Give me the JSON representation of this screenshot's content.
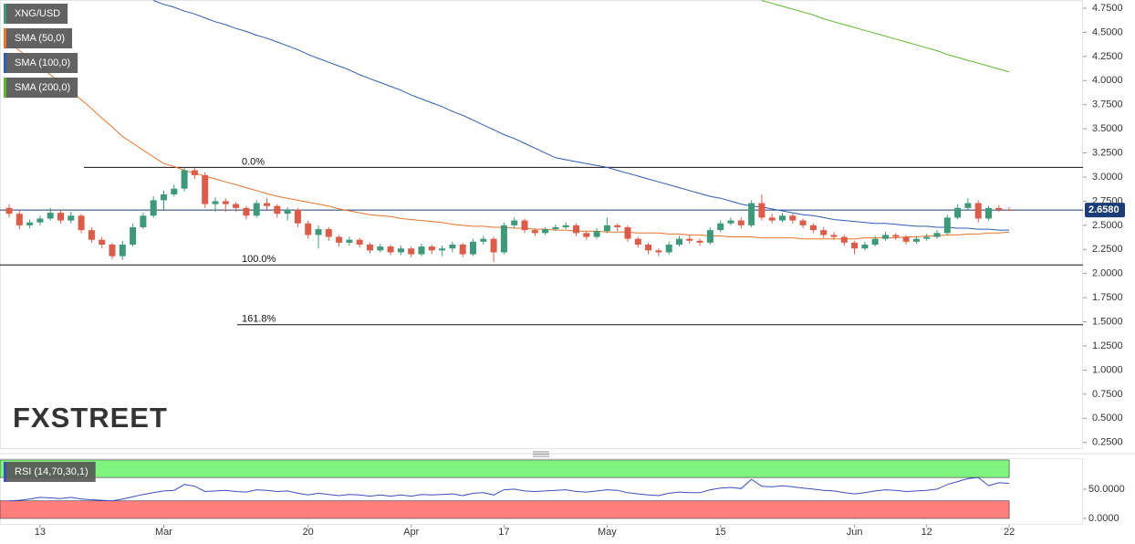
{
  "chart_data": {
    "type": "candlestick",
    "title": "XNG/USD",
    "title_color": "#3d9a78",
    "up_color": "#3d9a78",
    "down_color": "#e05a48",
    "watermark": "FXSTREET",
    "categories": [
      null,
      null,
      null,
      "13",
      null,
      null,
      null,
      null,
      null,
      null,
      null,
      null,
      null,
      null,
      null,
      "Mar",
      null,
      null,
      null,
      null,
      null,
      null,
      null,
      null,
      null,
      null,
      null,
      null,
      null,
      "20",
      null,
      null,
      null,
      null,
      null,
      null,
      null,
      null,
      null,
      "Apr",
      null,
      null,
      null,
      null,
      null,
      null,
      null,
      null,
      "17",
      null,
      null,
      null,
      null,
      null,
      null,
      null,
      null,
      null,
      "May",
      null,
      null,
      null,
      null,
      null,
      null,
      null,
      null,
      null,
      null,
      "15",
      null,
      null,
      null,
      null,
      null,
      null,
      null,
      null,
      null,
      null,
      null,
      null,
      "Jun",
      null,
      null,
      null,
      null,
      null,
      null,
      "12",
      null,
      null,
      null,
      null,
      null,
      null,
      null,
      "22"
    ],
    "ohlc": [
      [
        2.68,
        2.72,
        2.58,
        2.62
      ],
      [
        2.62,
        2.66,
        2.46,
        2.5
      ],
      [
        2.5,
        2.56,
        2.47,
        2.53
      ],
      [
        2.53,
        2.6,
        2.5,
        2.57
      ],
      [
        2.57,
        2.68,
        2.55,
        2.63
      ],
      [
        2.63,
        2.66,
        2.52,
        2.55
      ],
      [
        2.55,
        2.64,
        2.52,
        2.6
      ],
      [
        2.6,
        2.62,
        2.42,
        2.45
      ],
      [
        2.45,
        2.48,
        2.32,
        2.35
      ],
      [
        2.35,
        2.38,
        2.26,
        2.3
      ],
      [
        2.3,
        2.32,
        2.15,
        2.18
      ],
      [
        2.18,
        2.34,
        2.14,
        2.3
      ],
      [
        2.3,
        2.52,
        2.28,
        2.48
      ],
      [
        2.48,
        2.63,
        2.46,
        2.6
      ],
      [
        2.6,
        2.8,
        2.58,
        2.76
      ],
      [
        2.76,
        2.86,
        2.66,
        2.82
      ],
      [
        2.82,
        2.92,
        2.8,
        2.88
      ],
      [
        2.88,
        3.1,
        2.85,
        3.07
      ],
      [
        3.07,
        3.1,
        2.98,
        3.02
      ],
      [
        3.02,
        3.05,
        2.68,
        2.72
      ],
      [
        2.72,
        2.79,
        2.64,
        2.75
      ],
      [
        2.75,
        2.78,
        2.64,
        2.72
      ],
      [
        2.72,
        2.74,
        2.64,
        2.68
      ],
      [
        2.68,
        2.7,
        2.56,
        2.6
      ],
      [
        2.6,
        2.76,
        2.58,
        2.73
      ],
      [
        2.73,
        2.78,
        2.66,
        2.7
      ],
      [
        2.7,
        2.72,
        2.58,
        2.62
      ],
      [
        2.62,
        2.69,
        2.55,
        2.66
      ],
      [
        2.66,
        2.68,
        2.48,
        2.52
      ],
      [
        2.52,
        2.55,
        2.36,
        2.4
      ],
      [
        2.4,
        2.5,
        2.26,
        2.46
      ],
      [
        2.46,
        2.48,
        2.34,
        2.38
      ],
      [
        2.38,
        2.4,
        2.28,
        2.32
      ],
      [
        2.32,
        2.38,
        2.29,
        2.35
      ],
      [
        2.35,
        2.37,
        2.27,
        2.3
      ],
      [
        2.3,
        2.32,
        2.21,
        2.24
      ],
      [
        2.24,
        2.31,
        2.22,
        2.28
      ],
      [
        2.28,
        2.3,
        2.19,
        2.22
      ],
      [
        2.22,
        2.29,
        2.19,
        2.26
      ],
      [
        2.26,
        2.28,
        2.17,
        2.2
      ],
      [
        2.2,
        2.31,
        2.18,
        2.28
      ],
      [
        2.28,
        2.3,
        2.2,
        2.24
      ],
      [
        2.24,
        2.29,
        2.18,
        2.26
      ],
      [
        2.26,
        2.33,
        2.22,
        2.3
      ],
      [
        2.3,
        2.32,
        2.17,
        2.2
      ],
      [
        2.2,
        2.36,
        2.18,
        2.33
      ],
      [
        2.33,
        2.39,
        2.3,
        2.36
      ],
      [
        2.36,
        2.38,
        2.12,
        2.22
      ],
      [
        2.22,
        2.53,
        2.2,
        2.5
      ],
      [
        2.5,
        2.58,
        2.47,
        2.55
      ],
      [
        2.55,
        2.57,
        2.42,
        2.45
      ],
      [
        2.45,
        2.47,
        2.39,
        2.42
      ],
      [
        2.42,
        2.48,
        2.4,
        2.46
      ],
      [
        2.46,
        2.51,
        2.44,
        2.48
      ],
      [
        2.48,
        2.53,
        2.46,
        2.5
      ],
      [
        2.5,
        2.52,
        2.39,
        2.42
      ],
      [
        2.42,
        2.44,
        2.35,
        2.38
      ],
      [
        2.38,
        2.47,
        2.36,
        2.44
      ],
      [
        2.44,
        2.58,
        2.42,
        2.5
      ],
      [
        2.5,
        2.52,
        2.44,
        2.48
      ],
      [
        2.48,
        2.5,
        2.33,
        2.36
      ],
      [
        2.36,
        2.38,
        2.27,
        2.3
      ],
      [
        2.3,
        2.32,
        2.2,
        2.24
      ],
      [
        2.24,
        2.26,
        2.18,
        2.22
      ],
      [
        2.22,
        2.33,
        2.2,
        2.3
      ],
      [
        2.3,
        2.39,
        2.28,
        2.36
      ],
      [
        2.36,
        2.4,
        2.31,
        2.34
      ],
      [
        2.34,
        2.36,
        2.29,
        2.32
      ],
      [
        2.32,
        2.48,
        2.3,
        2.45
      ],
      [
        2.45,
        2.55,
        2.43,
        2.52
      ],
      [
        2.52,
        2.58,
        2.5,
        2.55
      ],
      [
        2.55,
        2.58,
        2.47,
        2.5
      ],
      [
        2.5,
        2.76,
        2.48,
        2.73
      ],
      [
        2.73,
        2.82,
        2.55,
        2.58
      ],
      [
        2.58,
        2.62,
        2.52,
        2.55
      ],
      [
        2.55,
        2.63,
        2.53,
        2.6
      ],
      [
        2.6,
        2.62,
        2.52,
        2.55
      ],
      [
        2.55,
        2.57,
        2.47,
        2.5
      ],
      [
        2.5,
        2.52,
        2.42,
        2.45
      ],
      [
        2.45,
        2.48,
        2.37,
        2.4
      ],
      [
        2.4,
        2.43,
        2.35,
        2.38
      ],
      [
        2.38,
        2.4,
        2.29,
        2.32
      ],
      [
        2.32,
        2.34,
        2.2,
        2.26
      ],
      [
        2.26,
        2.33,
        2.24,
        2.3
      ],
      [
        2.3,
        2.39,
        2.28,
        2.36
      ],
      [
        2.36,
        2.43,
        2.34,
        2.4
      ],
      [
        2.4,
        2.42,
        2.35,
        2.38
      ],
      [
        2.38,
        2.4,
        2.3,
        2.33
      ],
      [
        2.33,
        2.39,
        2.31,
        2.36
      ],
      [
        2.36,
        2.41,
        2.34,
        2.38
      ],
      [
        2.38,
        2.45,
        2.36,
        2.42
      ],
      [
        2.42,
        2.61,
        2.4,
        2.58
      ],
      [
        2.58,
        2.72,
        2.56,
        2.68
      ],
      [
        2.68,
        2.78,
        2.66,
        2.73
      ],
      [
        2.73,
        2.76,
        2.53,
        2.57
      ],
      [
        2.57,
        2.7,
        2.55,
        2.68
      ],
      [
        2.68,
        2.71,
        2.64,
        2.66
      ],
      [
        2.66,
        2.69,
        2.65,
        2.658
      ]
    ],
    "series": [
      {
        "name": "SMA (50,0)",
        "color": "#e8742a",
        "values": [
          4.4,
          4.31,
          4.23,
          4.14,
          4.06,
          3.97,
          3.89,
          3.8,
          3.71,
          3.61,
          3.52,
          3.42,
          3.35,
          3.28,
          3.21,
          3.14,
          3.11,
          3.07,
          3.04,
          3.01,
          2.98,
          2.95,
          2.92,
          2.89,
          2.86,
          2.83,
          2.8,
          2.78,
          2.76,
          2.74,
          2.72,
          2.7,
          2.67,
          2.65,
          2.63,
          2.61,
          2.6,
          2.59,
          2.57,
          2.56,
          2.55,
          2.54,
          2.53,
          2.51,
          2.5,
          2.49,
          2.49,
          2.48,
          2.48,
          2.47,
          2.47,
          2.46,
          2.46,
          2.45,
          2.45,
          2.44,
          2.44,
          2.44,
          2.43,
          2.43,
          2.43,
          2.42,
          2.42,
          2.42,
          2.41,
          2.41,
          2.4,
          2.4,
          2.39,
          2.39,
          2.38,
          2.38,
          2.38,
          2.37,
          2.37,
          2.37,
          2.37,
          2.36,
          2.36,
          2.36,
          2.36,
          2.36,
          2.36,
          2.37,
          2.37,
          2.37,
          2.37,
          2.38,
          2.38,
          2.39,
          2.39,
          2.4,
          2.4,
          2.41,
          2.41,
          2.42,
          2.42,
          2.43
        ]
      },
      {
        "name": "SMA (100,0)",
        "color": "#2d5db5",
        "values": [
          null,
          null,
          null,
          null,
          null,
          null,
          null,
          null,
          null,
          null,
          null,
          null,
          null,
          null,
          4.83,
          4.79,
          4.76,
          4.72,
          4.69,
          4.65,
          4.61,
          4.58,
          4.54,
          4.51,
          4.47,
          4.44,
          4.4,
          4.36,
          4.32,
          4.27,
          4.23,
          4.19,
          4.15,
          4.11,
          4.06,
          4.02,
          3.98,
          3.94,
          3.9,
          3.85,
          3.81,
          3.77,
          3.73,
          3.68,
          3.64,
          3.59,
          3.54,
          3.49,
          3.44,
          3.4,
          3.35,
          3.3,
          3.25,
          3.2,
          3.18,
          3.16,
          3.14,
          3.12,
          3.1,
          3.07,
          3.04,
          3.01,
          2.98,
          2.95,
          2.92,
          2.89,
          2.86,
          2.83,
          2.8,
          2.78,
          2.75,
          2.72,
          2.7,
          2.69,
          2.67,
          2.65,
          2.63,
          2.61,
          2.6,
          2.58,
          2.56,
          2.55,
          2.54,
          2.53,
          2.52,
          2.52,
          2.51,
          2.5,
          2.49,
          2.49,
          2.48,
          2.48,
          2.47,
          2.47,
          2.46,
          2.46,
          2.45,
          2.45
        ]
      },
      {
        "name": "SMA (200,0)",
        "color": "#5cb82e",
        "values": [
          null,
          null,
          null,
          null,
          null,
          null,
          null,
          null,
          null,
          null,
          null,
          null,
          null,
          null,
          null,
          null,
          null,
          null,
          null,
          null,
          null,
          null,
          null,
          null,
          null,
          null,
          null,
          null,
          null,
          null,
          null,
          null,
          null,
          null,
          null,
          null,
          null,
          null,
          null,
          null,
          null,
          null,
          null,
          null,
          null,
          null,
          null,
          null,
          null,
          null,
          null,
          null,
          null,
          null,
          null,
          null,
          null,
          null,
          null,
          null,
          null,
          null,
          null,
          null,
          null,
          null,
          null,
          null,
          null,
          null,
          null,
          null,
          null,
          4.83,
          4.8,
          4.77,
          4.74,
          4.71,
          4.68,
          4.64,
          4.61,
          4.58,
          4.55,
          4.52,
          4.49,
          4.46,
          4.43,
          4.4,
          4.37,
          4.34,
          4.31,
          4.27,
          4.24,
          4.21,
          4.18,
          4.15,
          4.12,
          4.09
        ]
      }
    ],
    "ylim": [
      0.2,
      4.835
    ],
    "yticks": [
      {
        "value": 4.75,
        "label": "4.7500"
      },
      {
        "value": 4.5,
        "label": "4.5000"
      },
      {
        "value": 4.25,
        "label": "4.2500"
      },
      {
        "value": 4.0,
        "label": "4.0000"
      },
      {
        "value": 3.75,
        "label": "3.7500"
      },
      {
        "value": 3.5,
        "label": "3.5000"
      },
      {
        "value": 3.25,
        "label": "3.2500"
      },
      {
        "value": 3.0,
        "label": "3.0000"
      },
      {
        "value": 2.75,
        "label": "2.7500"
      },
      {
        "value": 2.5,
        "label": "2.5000"
      },
      {
        "value": 2.25,
        "label": "2.2500"
      },
      {
        "value": 2.0,
        "label": "2.0000"
      },
      {
        "value": 1.75,
        "label": "1.7500"
      },
      {
        "value": 1.5,
        "label": "1.5000"
      },
      {
        "value": 1.25,
        "label": "1.2500"
      },
      {
        "value": 1.0,
        "label": "1.0000"
      },
      {
        "value": 0.75,
        "label": "0.7500"
      },
      {
        "value": 0.5,
        "label": "0.5000"
      },
      {
        "value": 0.25,
        "label": "0.2500"
      }
    ],
    "last_price": {
      "value": 2.658,
      "label": "2.6580",
      "color": "#1c3c78"
    },
    "fib_levels": [
      {
        "value": 3.1,
        "label": "0.0%"
      },
      {
        "value": 2.09,
        "label": "100.0%"
      },
      {
        "value": 1.47,
        "label": "161.8%"
      }
    ],
    "rsi": {
      "type": "line",
      "name": "RSI (14,70,30,1)",
      "color": "#3a4fc0",
      "values": [
        30,
        31,
        33,
        36,
        35,
        34,
        36,
        33,
        32,
        31,
        30,
        33,
        37,
        41,
        44,
        47,
        48,
        58,
        55,
        46,
        47,
        48,
        46,
        45,
        49,
        48,
        46,
        47,
        43,
        40,
        43,
        41,
        39,
        41,
        40,
        38,
        40,
        38,
        40,
        38,
        41,
        40,
        41,
        42,
        39,
        43,
        44,
        40,
        49,
        50,
        47,
        46,
        47,
        48,
        49,
        46,
        45,
        47,
        49,
        48,
        44,
        42,
        40,
        39,
        43,
        45,
        44,
        44,
        49,
        52,
        53,
        51,
        67,
        55,
        54,
        56,
        54,
        52,
        50,
        48,
        47,
        44,
        42,
        44,
        47,
        49,
        48,
        46,
        47,
        48,
        50,
        58,
        63,
        68,
        70,
        56,
        61,
        60
      ],
      "ylim": [
        -11,
        103
      ],
      "yticks": [
        {
          "value": 50,
          "label": "50.0000"
        },
        {
          "value": 0,
          "label": "0.0000"
        }
      ],
      "bands": [
        {
          "from": 70,
          "to": 100,
          "color": "#7ff57f"
        },
        {
          "from": 0,
          "to": 30,
          "color": "#ff7f7f"
        }
      ]
    }
  }
}
